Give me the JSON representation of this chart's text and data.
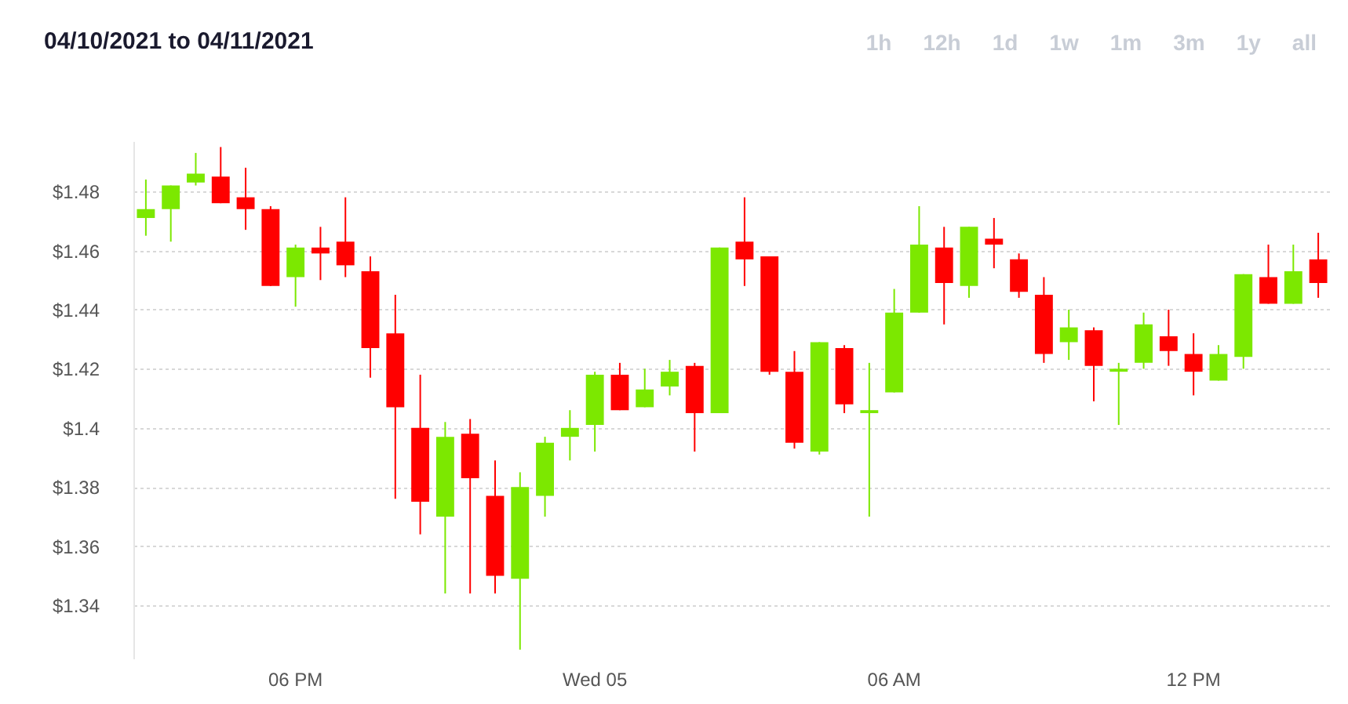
{
  "chart_data": {
    "type": "candlestick",
    "title": "04/10/2021 to 04/11/2021",
    "annotations": [
      "1h",
      "12h",
      "1d",
      "1w",
      "1m",
      "3m",
      "1y",
      "all"
    ],
    "categories": [
      null,
      null,
      null,
      null,
      null,
      null,
      "06 PM",
      null,
      null,
      null,
      null,
      null,
      null,
      null,
      null,
      null,
      null,
      null,
      "Wed 05",
      null,
      null,
      null,
      null,
      null,
      null,
      null,
      null,
      null,
      null,
      null,
      "06 AM",
      null,
      null,
      null,
      null,
      null,
      null,
      null,
      null,
      null,
      null,
      null,
      "12 PM",
      null,
      null,
      null,
      null,
      null
    ],
    "ohlc": [
      [
        1.471,
        1.484,
        1.465,
        1.474
      ],
      [
        1.474,
        1.482,
        1.463,
        1.482
      ],
      [
        1.483,
        1.493,
        1.482,
        1.486
      ],
      [
        1.485,
        1.495,
        1.476,
        1.476
      ],
      [
        1.478,
        1.488,
        1.467,
        1.474
      ],
      [
        1.474,
        1.475,
        1.448,
        1.448
      ],
      [
        1.451,
        1.462,
        1.441,
        1.461
      ],
      [
        1.461,
        1.468,
        1.45,
        1.459
      ],
      [
        1.463,
        1.478,
        1.451,
        1.455
      ],
      [
        1.453,
        1.458,
        1.417,
        1.427
      ],
      [
        1.432,
        1.445,
        1.376,
        1.407
      ],
      [
        1.4,
        1.418,
        1.364,
        1.375
      ],
      [
        1.37,
        1.402,
        1.344,
        1.397
      ],
      [
        1.398,
        1.403,
        1.344,
        1.383
      ],
      [
        1.377,
        1.389,
        1.344,
        1.35
      ],
      [
        1.349,
        1.385,
        1.325,
        1.38
      ],
      [
        1.377,
        1.397,
        1.37,
        1.395
      ],
      [
        1.397,
        1.406,
        1.389,
        1.4
      ],
      [
        1.401,
        1.419,
        1.392,
        1.418
      ],
      [
        1.418,
        1.422,
        1.406,
        1.406
      ],
      [
        1.407,
        1.42,
        1.407,
        1.413
      ],
      [
        1.414,
        1.423,
        1.411,
        1.419
      ],
      [
        1.421,
        1.422,
        1.392,
        1.405
      ],
      [
        1.405,
        1.461,
        1.405,
        1.461
      ],
      [
        1.463,
        1.478,
        1.448,
        1.457
      ],
      [
        1.458,
        1.458,
        1.418,
        1.419
      ],
      [
        1.419,
        1.426,
        1.393,
        1.395
      ],
      [
        1.392,
        1.429,
        1.391,
        1.429
      ],
      [
        1.427,
        1.428,
        1.405,
        1.408
      ],
      [
        1.405,
        1.422,
        1.37,
        1.406
      ],
      [
        1.412,
        1.447,
        1.412,
        1.439
      ],
      [
        1.439,
        1.475,
        1.439,
        1.462
      ],
      [
        1.461,
        1.468,
        1.435,
        1.449
      ],
      [
        1.448,
        1.468,
        1.444,
        1.468
      ],
      [
        1.464,
        1.471,
        1.454,
        1.462
      ],
      [
        1.457,
        1.459,
        1.444,
        1.446
      ],
      [
        1.445,
        1.451,
        1.422,
        1.425
      ],
      [
        1.429,
        1.44,
        1.423,
        1.434
      ],
      [
        1.433,
        1.434,
        1.409,
        1.421
      ],
      [
        1.419,
        1.422,
        1.401,
        1.42
      ],
      [
        1.422,
        1.439,
        1.42,
        1.435
      ],
      [
        1.431,
        1.44,
        1.421,
        1.426
      ],
      [
        1.425,
        1.432,
        1.411,
        1.419
      ],
      [
        1.416,
        1.428,
        1.416,
        1.425
      ],
      [
        1.424,
        1.452,
        1.42,
        1.452
      ],
      [
        1.451,
        1.462,
        1.442,
        1.442
      ],
      [
        1.442,
        1.462,
        1.442,
        1.453
      ],
      [
        1.457,
        1.466,
        1.444,
        1.449
      ]
    ],
    "colors": [
      "#7ce800",
      "#7ce800",
      "#7ce800",
      "#ff0000",
      "#ff0000",
      "#ff0000",
      "#7ce800",
      "#ff0000",
      "#ff0000",
      "#ff0000",
      "#ff0000",
      "#ff0000",
      "#7ce800",
      "#ff0000",
      "#ff0000",
      "#7ce800",
      "#7ce800",
      "#7ce800",
      "#7ce800",
      "#ff0000",
      "#7ce800",
      "#7ce800",
      "#ff0000",
      "#7ce800",
      "#ff0000",
      "#ff0000",
      "#ff0000",
      "#7ce800",
      "#ff0000",
      "#7ce800",
      "#7ce800",
      "#7ce800",
      "#ff0000",
      "#7ce800",
      "#ff0000",
      "#ff0000",
      "#ff0000",
      "#7ce800",
      "#ff0000",
      "#7ce800",
      "#7ce800",
      "#ff0000",
      "#ff0000",
      "#7ce800",
      "#7ce800",
      "#ff0000",
      "#7ce800",
      "#ff0000"
    ],
    "ylim": [
      1.322,
      1.497
    ],
    "yticks": [
      {
        "value": 1.34,
        "label": "$1.34"
      },
      {
        "value": 1.36,
        "label": "$1.36"
      },
      {
        "value": 1.38,
        "label": "$1.38"
      },
      {
        "value": 1.4,
        "label": "$1.4"
      },
      {
        "value": 1.42,
        "label": "$1.42"
      },
      {
        "value": 1.44,
        "label": "$1.44"
      },
      {
        "value": 1.46,
        "label": "$1.46"
      },
      {
        "value": 1.48,
        "label": "$1.48"
      }
    ],
    "grid": "y"
  }
}
